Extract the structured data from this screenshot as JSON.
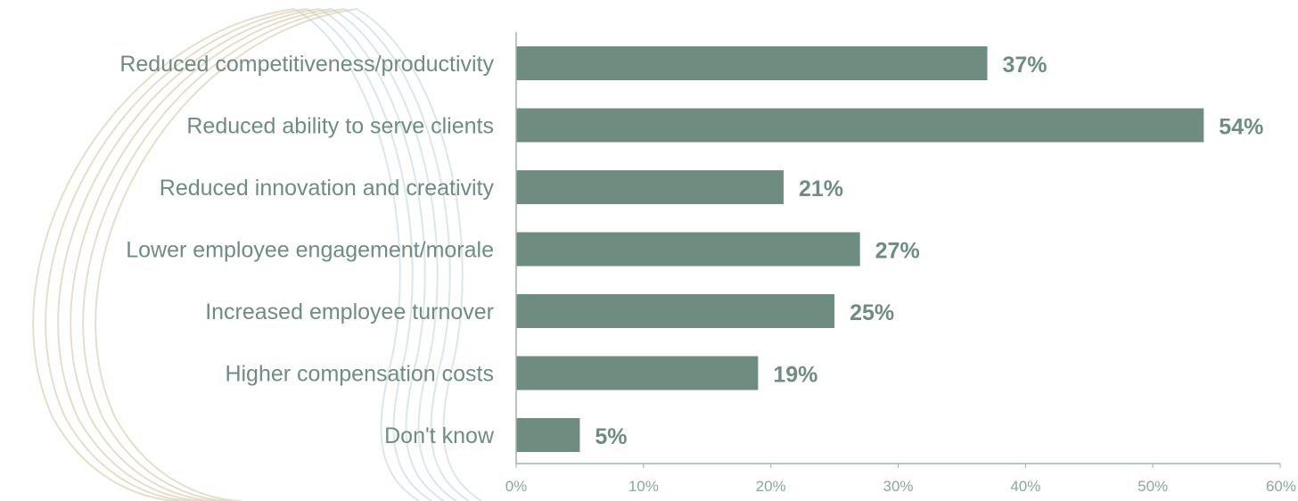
{
  "chart_data": {
    "type": "bar",
    "orientation": "horizontal",
    "categories": [
      "Reduced competitiveness/productivity",
      "Reduced ability to serve clients",
      "Reduced innovation and creativity",
      "Lower employee engagement/morale",
      "Increased employee turnover",
      "Higher compensation costs",
      "Don't know"
    ],
    "values": [
      37,
      54,
      21,
      27,
      25,
      19,
      5
    ],
    "value_labels": [
      "37%",
      "54%",
      "21%",
      "27%",
      "25%",
      "19%",
      "5%"
    ],
    "x_ticks": [
      0,
      10,
      20,
      30,
      40,
      50,
      60
    ],
    "x_tick_labels": [
      "0%",
      "10%",
      "20%",
      "30%",
      "40%",
      "50%",
      "60%"
    ],
    "xlim": [
      0,
      60
    ],
    "title": "",
    "xlabel": "",
    "ylabel": "",
    "grid": false,
    "legend": "none"
  },
  "colors": {
    "bar": "#6e8d80",
    "label": "#6e8d80",
    "tick": "#8ca89c",
    "axis": "#9fb3aa",
    "arc_warm": "#cfc3a0",
    "arc_cool": "#b7cfd6"
  }
}
